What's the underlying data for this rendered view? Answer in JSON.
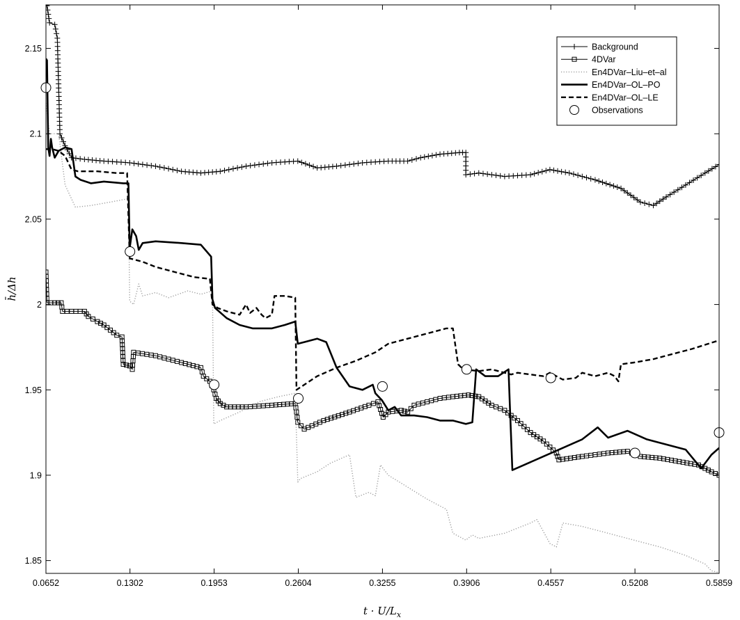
{
  "chart_data": {
    "type": "line",
    "title": "",
    "xlabel": "t · U/L",
    "xlabel_sub": "x",
    "ylabel": "h̄/Δh",
    "xlim": [
      0.0652,
      0.5859
    ],
    "ylim": [
      1.8425,
      2.1755
    ],
    "x_ticks": [
      "0.0652",
      "0.1302",
      "0.1953",
      "0.2604",
      "0.3255",
      "0.3906",
      "0.4557",
      "0.5208",
      "0.5859"
    ],
    "y_ticks": [
      "1.85",
      "1.9",
      "1.95",
      "2",
      "2.05",
      "2.1",
      "2.15"
    ],
    "grid": false,
    "legend_position": "top-right",
    "series": [
      {
        "name": "Background",
        "style": "solid-thin-plus",
        "color": "#000000",
        "points": [
          [
            0.0652,
            2.175
          ],
          [
            0.066,
            2.175
          ],
          [
            0.068,
            2.165
          ],
          [
            0.072,
            2.164
          ],
          [
            0.074,
            2.156
          ],
          [
            0.076,
            2.1
          ],
          [
            0.08,
            2.093
          ],
          [
            0.085,
            2.086
          ],
          [
            0.095,
            2.085
          ],
          [
            0.11,
            2.084
          ],
          [
            0.13,
            2.083
          ],
          [
            0.15,
            2.081
          ],
          [
            0.17,
            2.078
          ],
          [
            0.185,
            2.077
          ],
          [
            0.2,
            2.078
          ],
          [
            0.22,
            2.081
          ],
          [
            0.24,
            2.083
          ],
          [
            0.26,
            2.084
          ],
          [
            0.275,
            2.08
          ],
          [
            0.29,
            2.081
          ],
          [
            0.31,
            2.083
          ],
          [
            0.33,
            2.084
          ],
          [
            0.345,
            2.084
          ],
          [
            0.355,
            2.086
          ],
          [
            0.37,
            2.088
          ],
          [
            0.385,
            2.089
          ],
          [
            0.39,
            2.089
          ],
          [
            0.39,
            2.076
          ],
          [
            0.4,
            2.077
          ],
          [
            0.42,
            2.075
          ],
          [
            0.44,
            2.076
          ],
          [
            0.455,
            2.079
          ],
          [
            0.47,
            2.077
          ],
          [
            0.49,
            2.073
          ],
          [
            0.51,
            2.068
          ],
          [
            0.525,
            2.06
          ],
          [
            0.535,
            2.058
          ],
          [
            0.545,
            2.063
          ],
          [
            0.56,
            2.07
          ],
          [
            0.575,
            2.077
          ],
          [
            0.5859,
            2.082
          ]
        ]
      },
      {
        "name": "4DVar",
        "style": "solid-thin-square",
        "color": "#000000",
        "points": [
          [
            0.0652,
            2.019
          ],
          [
            0.066,
            2.001
          ],
          [
            0.072,
            2.001
          ],
          [
            0.077,
            2.001
          ],
          [
            0.078,
            1.996
          ],
          [
            0.085,
            1.996
          ],
          [
            0.095,
            1.996
          ],
          [
            0.098,
            1.993
          ],
          [
            0.105,
            1.99
          ],
          [
            0.11,
            1.988
          ],
          [
            0.115,
            1.985
          ],
          [
            0.12,
            1.982
          ],
          [
            0.124,
            1.981
          ],
          [
            0.125,
            1.965
          ],
          [
            0.13,
            1.964
          ],
          [
            0.132,
            1.962
          ],
          [
            0.133,
            1.972
          ],
          [
            0.15,
            1.97
          ],
          [
            0.17,
            1.966
          ],
          [
            0.185,
            1.963
          ],
          [
            0.187,
            1.958
          ],
          [
            0.192,
            1.955
          ],
          [
            0.195,
            1.95
          ],
          [
            0.197,
            1.945
          ],
          [
            0.2,
            1.942
          ],
          [
            0.205,
            1.94
          ],
          [
            0.22,
            1.94
          ],
          [
            0.24,
            1.941
          ],
          [
            0.258,
            1.942
          ],
          [
            0.259,
            1.937
          ],
          [
            0.26,
            1.931
          ],
          [
            0.265,
            1.927
          ],
          [
            0.28,
            1.932
          ],
          [
            0.3,
            1.937
          ],
          [
            0.315,
            1.941
          ],
          [
            0.322,
            1.943
          ],
          [
            0.326,
            1.934
          ],
          [
            0.33,
            1.937
          ],
          [
            0.34,
            1.938
          ],
          [
            0.345,
            1.937
          ],
          [
            0.35,
            1.941
          ],
          [
            0.36,
            1.943
          ],
          [
            0.37,
            1.945
          ],
          [
            0.38,
            1.946
          ],
          [
            0.392,
            1.947
          ],
          [
            0.4,
            1.946
          ],
          [
            0.41,
            1.941
          ],
          [
            0.42,
            1.938
          ],
          [
            0.43,
            1.932
          ],
          [
            0.44,
            1.925
          ],
          [
            0.45,
            1.92
          ],
          [
            0.46,
            1.913
          ],
          [
            0.462,
            1.909
          ],
          [
            0.48,
            1.911
          ],
          [
            0.5,
            1.913
          ],
          [
            0.515,
            1.914
          ],
          [
            0.525,
            1.911
          ],
          [
            0.54,
            1.91
          ],
          [
            0.555,
            1.908
          ],
          [
            0.57,
            1.906
          ],
          [
            0.58,
            1.902
          ],
          [
            0.5859,
            1.9
          ]
        ]
      },
      {
        "name": "En4DVar–Liu–et–al",
        "style": "dotted",
        "color": "#9a9a9a",
        "points": [
          [
            0.0652,
            2.118
          ],
          [
            0.068,
            2.1
          ],
          [
            0.075,
            2.1
          ],
          [
            0.08,
            2.07
          ],
          [
            0.088,
            2.057
          ],
          [
            0.1,
            2.058
          ],
          [
            0.115,
            2.06
          ],
          [
            0.129,
            2.062
          ],
          [
            0.13,
            2.002
          ],
          [
            0.133,
            2.0
          ],
          [
            0.137,
            2.012
          ],
          [
            0.14,
            2.005
          ],
          [
            0.15,
            2.007
          ],
          [
            0.16,
            2.004
          ],
          [
            0.175,
            2.008
          ],
          [
            0.185,
            2.006
          ],
          [
            0.194,
            2.008
          ],
          [
            0.195,
            1.93
          ],
          [
            0.2,
            1.932
          ],
          [
            0.215,
            1.937
          ],
          [
            0.23,
            1.943
          ],
          [
            0.245,
            1.946
          ],
          [
            0.258,
            1.948
          ],
          [
            0.26,
            1.896
          ],
          [
            0.262,
            1.898
          ],
          [
            0.275,
            1.902
          ],
          [
            0.285,
            1.907
          ],
          [
            0.3,
            1.912
          ],
          [
            0.305,
            1.887
          ],
          [
            0.315,
            1.89
          ],
          [
            0.32,
            1.888
          ],
          [
            0.324,
            1.906
          ],
          [
            0.33,
            1.9
          ],
          [
            0.345,
            1.893
          ],
          [
            0.36,
            1.886
          ],
          [
            0.375,
            1.88
          ],
          [
            0.38,
            1.866
          ],
          [
            0.39,
            1.862
          ],
          [
            0.395,
            1.865
          ],
          [
            0.4,
            1.863
          ],
          [
            0.42,
            1.866
          ],
          [
            0.44,
            1.872
          ],
          [
            0.445,
            1.874
          ],
          [
            0.455,
            1.86
          ],
          [
            0.46,
            1.858
          ],
          [
            0.465,
            1.872
          ],
          [
            0.48,
            1.87
          ],
          [
            0.5,
            1.866
          ],
          [
            0.52,
            1.862
          ],
          [
            0.54,
            1.858
          ],
          [
            0.56,
            1.853
          ],
          [
            0.575,
            1.848
          ],
          [
            0.58,
            1.844
          ],
          [
            0.5859,
            1.843
          ]
        ]
      },
      {
        "name": "En4DVar–OL–PO",
        "style": "solid-thick",
        "color": "#000000",
        "points": [
          [
            0.0652,
            2.144
          ],
          [
            0.066,
            2.143
          ],
          [
            0.067,
            2.092
          ],
          [
            0.068,
            2.087
          ],
          [
            0.069,
            2.097
          ],
          [
            0.07,
            2.092
          ],
          [
            0.072,
            2.086
          ],
          [
            0.075,
            2.09
          ],
          [
            0.08,
            2.092
          ],
          [
            0.085,
            2.091
          ],
          [
            0.088,
            2.075
          ],
          [
            0.092,
            2.073
          ],
          [
            0.1,
            2.071
          ],
          [
            0.11,
            2.072
          ],
          [
            0.125,
            2.071
          ],
          [
            0.129,
            2.071
          ],
          [
            0.13,
            2.033
          ],
          [
            0.132,
            2.044
          ],
          [
            0.135,
            2.04
          ],
          [
            0.137,
            2.032
          ],
          [
            0.14,
            2.036
          ],
          [
            0.15,
            2.037
          ],
          [
            0.17,
            2.036
          ],
          [
            0.185,
            2.035
          ],
          [
            0.193,
            2.028
          ],
          [
            0.194,
            2.003
          ],
          [
            0.196,
            1.998
          ],
          [
            0.205,
            1.992
          ],
          [
            0.215,
            1.988
          ],
          [
            0.225,
            1.986
          ],
          [
            0.24,
            1.986
          ],
          [
            0.25,
            1.988
          ],
          [
            0.258,
            1.99
          ],
          [
            0.26,
            1.977
          ],
          [
            0.265,
            1.978
          ],
          [
            0.275,
            1.98
          ],
          [
            0.282,
            1.978
          ],
          [
            0.29,
            1.963
          ],
          [
            0.3,
            1.952
          ],
          [
            0.31,
            1.95
          ],
          [
            0.318,
            1.953
          ],
          [
            0.32,
            1.948
          ],
          [
            0.325,
            1.944
          ],
          [
            0.33,
            1.938
          ],
          [
            0.335,
            1.94
          ],
          [
            0.34,
            1.935
          ],
          [
            0.35,
            1.935
          ],
          [
            0.36,
            1.934
          ],
          [
            0.37,
            1.932
          ],
          [
            0.38,
            1.932
          ],
          [
            0.39,
            1.93
          ],
          [
            0.395,
            1.931
          ],
          [
            0.398,
            1.962
          ],
          [
            0.405,
            1.958
          ],
          [
            0.415,
            1.958
          ],
          [
            0.423,
            1.962
          ],
          [
            0.424,
            1.942
          ],
          [
            0.426,
            1.903
          ],
          [
            0.435,
            1.906
          ],
          [
            0.45,
            1.911
          ],
          [
            0.465,
            1.916
          ],
          [
            0.48,
            1.921
          ],
          [
            0.492,
            1.928
          ],
          [
            0.5,
            1.922
          ],
          [
            0.515,
            1.926
          ],
          [
            0.53,
            1.921
          ],
          [
            0.545,
            1.918
          ],
          [
            0.56,
            1.915
          ],
          [
            0.572,
            1.904
          ],
          [
            0.58,
            1.912
          ],
          [
            0.5859,
            1.916
          ]
        ]
      },
      {
        "name": "En4DVar–OL–LE",
        "style": "dashed-thick",
        "color": "#000000",
        "points": [
          [
            0.0652,
            2.091
          ],
          [
            0.07,
            2.091
          ],
          [
            0.075,
            2.09
          ],
          [
            0.08,
            2.087
          ],
          [
            0.085,
            2.079
          ],
          [
            0.09,
            2.078
          ],
          [
            0.105,
            2.078
          ],
          [
            0.12,
            2.077
          ],
          [
            0.128,
            2.077
          ],
          [
            0.13,
            2.027
          ],
          [
            0.14,
            2.025
          ],
          [
            0.15,
            2.022
          ],
          [
            0.165,
            2.019
          ],
          [
            0.18,
            2.016
          ],
          [
            0.192,
            2.015
          ],
          [
            0.194,
            2.0
          ],
          [
            0.198,
            1.998
          ],
          [
            0.205,
            1.996
          ],
          [
            0.215,
            1.994
          ],
          [
            0.22,
            2.0
          ],
          [
            0.223,
            1.995
          ],
          [
            0.228,
            1.998
          ],
          [
            0.232,
            1.994
          ],
          [
            0.235,
            1.992
          ],
          [
            0.24,
            1.994
          ],
          [
            0.242,
            2.005
          ],
          [
            0.25,
            2.005
          ],
          [
            0.258,
            2.004
          ],
          [
            0.259,
            1.95
          ],
          [
            0.265,
            1.953
          ],
          [
            0.275,
            1.958
          ],
          [
            0.29,
            1.963
          ],
          [
            0.305,
            1.967
          ],
          [
            0.32,
            1.972
          ],
          [
            0.33,
            1.977
          ],
          [
            0.345,
            1.98
          ],
          [
            0.36,
            1.983
          ],
          [
            0.375,
            1.986
          ],
          [
            0.38,
            1.986
          ],
          [
            0.384,
            1.965
          ],
          [
            0.388,
            1.962
          ],
          [
            0.4,
            1.961
          ],
          [
            0.41,
            1.962
          ],
          [
            0.42,
            1.96
          ],
          [
            0.425,
            1.959
          ],
          [
            0.43,
            1.96
          ],
          [
            0.44,
            1.959
          ],
          [
            0.45,
            1.958
          ],
          [
            0.455,
            1.96
          ],
          [
            0.46,
            1.958
          ],
          [
            0.465,
            1.956
          ],
          [
            0.475,
            1.957
          ],
          [
            0.48,
            1.96
          ],
          [
            0.49,
            1.958
          ],
          [
            0.5,
            1.96
          ],
          [
            0.505,
            1.958
          ],
          [
            0.508,
            1.955
          ],
          [
            0.51,
            1.965
          ],
          [
            0.52,
            1.966
          ],
          [
            0.535,
            1.968
          ],
          [
            0.55,
            1.971
          ],
          [
            0.565,
            1.974
          ],
          [
            0.5859,
            1.979
          ]
        ]
      }
    ],
    "observations": {
      "name": "Observations",
      "points": [
        [
          0.0652,
          2.127
        ],
        [
          0.1302,
          2.031
        ],
        [
          0.1953,
          1.953
        ],
        [
          0.2604,
          1.945
        ],
        [
          0.3255,
          1.952
        ],
        [
          0.3906,
          1.962
        ],
        [
          0.4557,
          1.957
        ],
        [
          0.5208,
          1.913
        ],
        [
          0.5859,
          1.925
        ]
      ]
    }
  }
}
